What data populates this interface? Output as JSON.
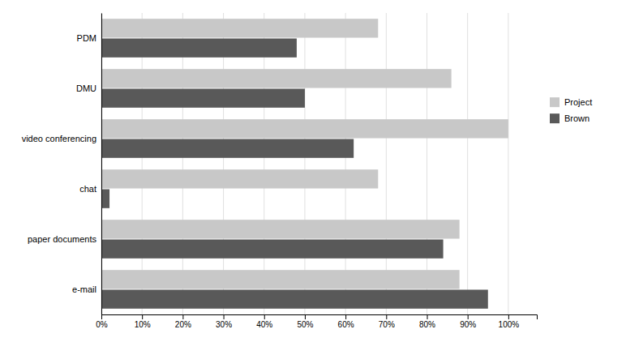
{
  "chart_data": {
    "type": "bar",
    "orientation": "horizontal",
    "categories": [
      "e-mail",
      "paper documents",
      "chat",
      "video conferencing",
      "DMU",
      "PDM"
    ],
    "series": [
      {
        "name": "Project",
        "color": "#c8c8c8",
        "values": [
          88,
          88,
          68,
          100,
          86,
          68
        ]
      },
      {
        "name": "Brown",
        "color": "#595959",
        "values": [
          95,
          84,
          2,
          62,
          50,
          48
        ]
      }
    ],
    "xlim": [
      0,
      107
    ],
    "xticks": [
      {
        "value": 0,
        "label": "0%"
      },
      {
        "value": 10,
        "label": "10%"
      },
      {
        "value": 20,
        "label": "20%"
      },
      {
        "value": 30,
        "label": "30%"
      },
      {
        "value": 40,
        "label": "40%"
      },
      {
        "value": 50,
        "label": "50%"
      },
      {
        "value": 60,
        "label": "60%"
      },
      {
        "value": 70,
        "label": "70%"
      },
      {
        "value": 80,
        "label": "80%"
      },
      {
        "value": 90,
        "label": "90%"
      },
      {
        "value": 100,
        "label": "100%"
      }
    ],
    "grid": true,
    "legend": "right"
  }
}
